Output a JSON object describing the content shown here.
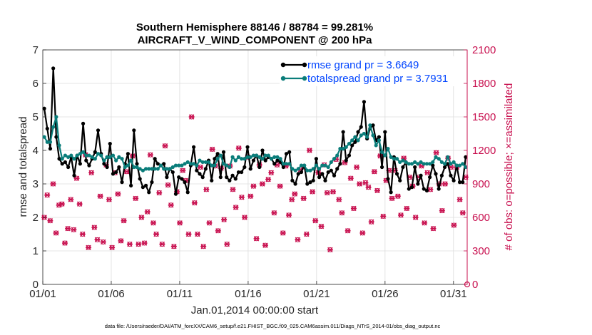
{
  "chart_data": {
    "type": "line",
    "title": "Southern Hemisphere 88146 / 88784 = 99.281%",
    "subtitle": "AIRCRAFT_V_WIND_COMPONENT @ 200 hPa",
    "xlabel": "Jan.01,2014 00:00:00 start",
    "ylabel": "rmse and totalspread",
    "ylabel_right": "# of obs: o=possible; ×=assimilated",
    "x_tick_labels": [
      "01/01",
      "01/06",
      "01/11",
      "01/16",
      "01/21",
      "01/26",
      "01/31"
    ],
    "xlim": [
      1,
      32
    ],
    "ylim": [
      0,
      7
    ],
    "ylim_right": [
      0,
      2100
    ],
    "y_ticks": [
      "0",
      "1",
      "2",
      "3",
      "4",
      "5",
      "6",
      "7"
    ],
    "y_ticks_right": [
      "0",
      "300",
      "600",
      "900",
      "1200",
      "1500",
      "1800",
      "2100"
    ],
    "grid": true,
    "legend_position": "top-right",
    "footnote": "data file: /Users/raeder/DAI/ATM_forcXX/CAM6_setup/f.e21.FHIST_BGC.f09_025.CAM6assim.011/Diags_NTrS_2014-01/obs_diag_output.nc",
    "series": [
      {
        "name": "rmse",
        "legend": "rmse grand pr = 3.6649",
        "color": "#000000",
        "axis": "left",
        "values": [
          5.25,
          4.65,
          4.05,
          6.45,
          4.4,
          3.75,
          3.6,
          3.65,
          3.5,
          3.8,
          3.25,
          3.85,
          3.6,
          4.8,
          3.7,
          3.55,
          3.75,
          3.95,
          4.6,
          3.9,
          3.6,
          3.5,
          4.2,
          3.3,
          3.35,
          3.5,
          3.05,
          3.6,
          3.9,
          2.95,
          4.6,
          3.6,
          3.15,
          2.9,
          2.95,
          2.75,
          3.05,
          3.75,
          3.6,
          3.55,
          3.6,
          3.2,
          3.45,
          3.35,
          2.7,
          3.2,
          3.15,
          3.05,
          2.75,
          3.55,
          4.1,
          3.4,
          3.3,
          3.2,
          3.45,
          3.7,
          3.1,
          3.75,
          3.9,
          3.2,
          3.95,
          3.2,
          3.1,
          3.25,
          3.15,
          3.35,
          3.35,
          3.5,
          4.1,
          3.45,
          3.7,
          3.85,
          3.5,
          4.0,
          3.7,
          3.8,
          3.75,
          3.6,
          3.7,
          3.65,
          3.5,
          3.9,
          3.95,
          3.1,
          3.0,
          3.3,
          3.35,
          3.55,
          3.0,
          3.05,
          3.1,
          3.75,
          3.2,
          3.3,
          3.1,
          3.35,
          3.4,
          3.25,
          3.45,
          3.6,
          4.55,
          3.7,
          3.85,
          4.15,
          4.25,
          4.55,
          4.7,
          5.45,
          4.35,
          4.65,
          4.75,
          4.3,
          4.4,
          3.5,
          4.55,
          3.15,
          2.75,
          3.8,
          3.3,
          3.1,
          3.5,
          3.65,
          2.85,
          2.9,
          3.5,
          3.0,
          3.25,
          2.85,
          2.8,
          3.2,
          3.55,
          3.3,
          2.85,
          3.25,
          3.5,
          3.6,
          3.25,
          3.1,
          3.55,
          3.05,
          3.05,
          3.8
        ],
        "marker": "dot"
      },
      {
        "name": "totalspread",
        "legend": "totalspread grand pr = 3.7931",
        "color": "#0a7d7a",
        "axis": "left",
        "values": [
          4.4,
          4.25,
          4.25,
          4.7,
          5.0,
          4.15,
          3.75,
          3.85,
          3.8,
          3.85,
          3.75,
          3.85,
          3.9,
          3.95,
          3.85,
          3.85,
          3.8,
          3.75,
          3.9,
          3.85,
          3.7,
          3.8,
          3.8,
          3.85,
          3.7,
          3.8,
          3.75,
          3.5,
          3.55,
          3.7,
          3.5,
          3.5,
          3.45,
          3.4,
          3.45,
          3.45,
          3.45,
          3.45,
          3.45,
          3.55,
          3.45,
          3.45,
          3.45,
          3.5,
          3.55,
          3.55,
          3.55,
          3.6,
          3.65,
          3.6,
          3.6,
          3.55,
          3.7,
          3.65,
          3.65,
          3.65,
          3.55,
          3.55,
          3.75,
          3.85,
          3.6,
          3.55,
          3.5,
          3.8,
          3.7,
          3.8,
          3.75,
          3.75,
          3.8,
          3.8,
          3.85,
          3.85,
          3.8,
          3.75,
          3.85,
          3.85,
          3.75,
          3.8,
          3.8,
          3.75,
          3.6,
          3.6,
          3.6,
          3.45,
          3.4,
          3.45,
          3.55,
          3.55,
          3.4,
          3.4,
          3.45,
          3.55,
          3.45,
          3.55,
          3.55,
          3.5,
          3.65,
          3.75,
          3.85,
          4.05,
          4.05,
          4.1,
          4.2,
          4.3,
          4.4,
          4.3,
          4.45,
          4.5,
          4.4,
          4.75,
          4.45,
          4.15,
          4.3,
          3.95,
          3.85,
          4.05,
          3.8,
          3.75,
          3.75,
          3.65,
          3.7,
          3.65,
          3.6,
          3.6,
          3.65,
          3.6,
          3.65,
          3.6,
          3.6,
          3.6,
          3.65,
          3.8,
          3.75,
          3.65,
          3.6,
          3.8,
          3.6,
          3.65,
          3.55,
          3.55,
          3.6,
          3.5
        ],
        "marker": "dot"
      },
      {
        "name": "# obs possible",
        "color": "#c8104f",
        "axis": "right",
        "values": [
          600,
          800,
          570,
          900,
          460,
          710,
          720,
          370,
          500,
          760,
          490,
          950,
          720,
          450,
          1160,
          330,
          1000,
          510,
          400,
          790,
          380,
          1070,
          760,
          330,
          1000,
          810,
          390,
          570,
          1010,
          360,
          1150,
          770,
          360,
          600,
          370,
          650,
          1160,
          550,
          450,
          820,
          360,
          1240,
          890,
          710,
          340,
          830,
          550,
          1020,
          930,
          450,
          1500,
          730,
          450,
          1050,
          340,
          850,
          550,
          1210,
          1060,
          480,
          1040,
          580,
          360,
          1060,
          850,
          690,
          1220,
          780,
          600,
          1140,
          790,
          880,
          410,
          1070,
          900,
          350,
          940,
          1000,
          640,
          1070,
          880,
          460,
          1060,
          620,
          760,
          810,
          400,
          1030,
          770,
          450,
          1200,
          830,
          570,
          1000,
          520,
          1070,
          820,
          310,
          830,
          1120,
          760,
          640,
          1090,
          480,
          950,
          680,
          1050,
          900,
          460,
          910,
          870,
          560,
          1010,
          840,
          1150,
          610,
          930,
          1020,
          770,
          1020,
          790,
          620,
          1130,
          680,
          960,
          880,
          600,
          960,
          1060,
          550,
          1000,
          850,
          500,
          1180,
          900,
          660,
          900,
          1130,
          1050,
          530,
          1050,
          760,
          640,
          960
        ],
        "marker": "circle"
      },
      {
        "name": "# obs assimilated",
        "color": "#c8104f",
        "axis": "right",
        "values": [
          600,
          800,
          570,
          900,
          460,
          710,
          720,
          370,
          500,
          760,
          490,
          950,
          720,
          450,
          1160,
          330,
          1000,
          510,
          400,
          790,
          380,
          1070,
          760,
          330,
          1000,
          810,
          390,
          570,
          1010,
          360,
          1150,
          770,
          360,
          600,
          370,
          650,
          1160,
          550,
          450,
          820,
          360,
          1240,
          890,
          710,
          340,
          830,
          550,
          1020,
          930,
          450,
          1500,
          730,
          450,
          1050,
          340,
          850,
          550,
          1210,
          1060,
          480,
          1040,
          580,
          360,
          1060,
          850,
          690,
          1220,
          780,
          600,
          1140,
          790,
          880,
          410,
          1070,
          900,
          350,
          940,
          1000,
          640,
          1070,
          880,
          460,
          1060,
          620,
          760,
          810,
          400,
          1030,
          770,
          450,
          1200,
          830,
          570,
          1000,
          520,
          1070,
          820,
          310,
          830,
          1120,
          760,
          640,
          1090,
          480,
          950,
          680,
          1050,
          900,
          460,
          910,
          870,
          560,
          1010,
          840,
          1150,
          610,
          930,
          1020,
          770,
          1020,
          790,
          620,
          1130,
          680,
          960,
          880,
          600,
          960,
          1060,
          550,
          1000,
          850,
          500,
          1180,
          900,
          660,
          900,
          1130,
          1050,
          530,
          1050,
          760,
          640,
          960
        ],
        "marker": "cross"
      }
    ]
  }
}
